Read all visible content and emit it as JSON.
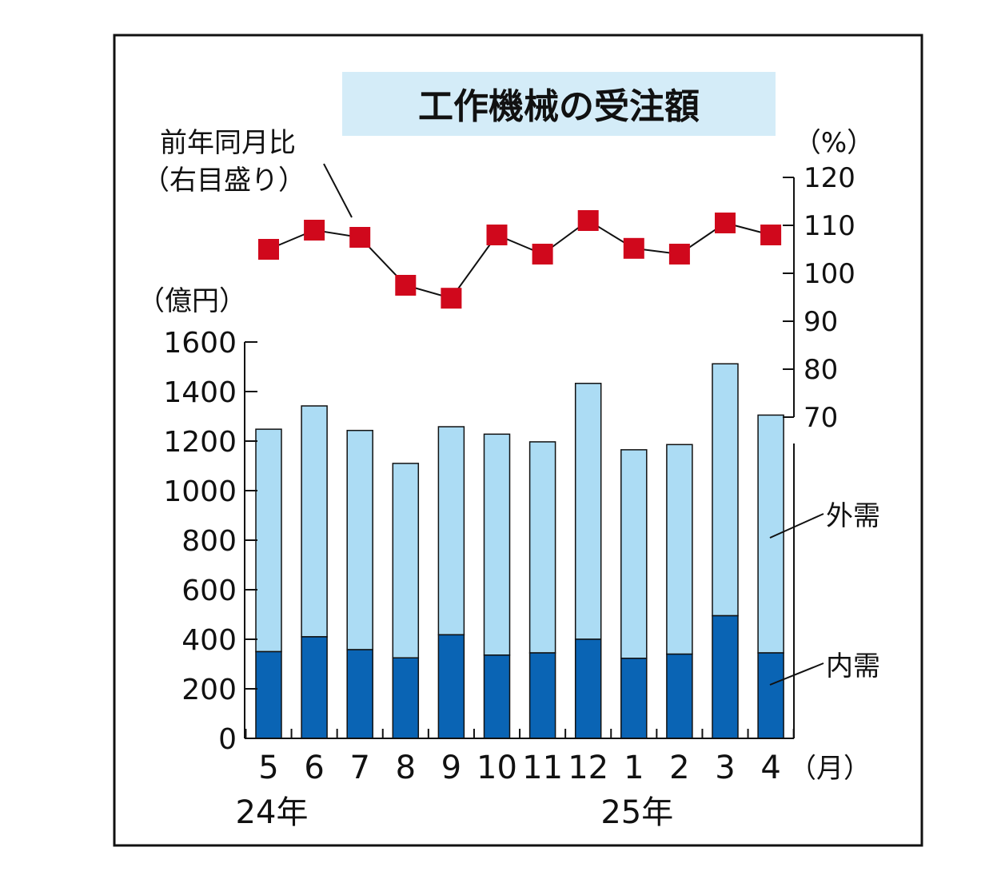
{
  "chart_data": {
    "type": "bar",
    "title": "工作機械の受注額",
    "left_axis_unit": "（億円）",
    "right_axis_unit": "（%）",
    "x_unit": "（月）",
    "line_label_1": "前年同月比",
    "line_label_2": "（右目盛り）",
    "categories": [
      "5",
      "6",
      "7",
      "8",
      "9",
      "10",
      "11",
      "12",
      "1",
      "2",
      "3",
      "4"
    ],
    "year_labels": [
      {
        "text": "24年",
        "category": "5"
      },
      {
        "text": "25年",
        "category": "1"
      }
    ],
    "ylim": [
      0,
      1600
    ],
    "y_ticks": [
      "0",
      "200",
      "400",
      "600",
      "800",
      "1000",
      "1200",
      "1400",
      "1600"
    ],
    "right_ylim": [
      70,
      120
    ],
    "right_ticks": [
      "70",
      "80",
      "90",
      "100",
      "110",
      "120"
    ],
    "series": [
      {
        "name": "内需",
        "color": "#0a64b4",
        "values": [
          350,
          410,
          358,
          325,
          418,
          336,
          345,
          400,
          323,
          340,
          495,
          345
        ]
      },
      {
        "name": "外需",
        "color": "#acdcf4",
        "values": [
          898,
          932,
          885,
          785,
          840,
          892,
          852,
          1033,
          842,
          846,
          1017,
          960
        ]
      },
      {
        "name": "前年同月比",
        "color": "#d0081c",
        "axis": "right",
        "type": "line",
        "values": [
          105.0,
          109.0,
          107.5,
          97.5,
          94.8,
          108.0,
          104.0,
          111.0,
          105.2,
          104.0,
          110.5,
          108.0
        ]
      }
    ]
  }
}
